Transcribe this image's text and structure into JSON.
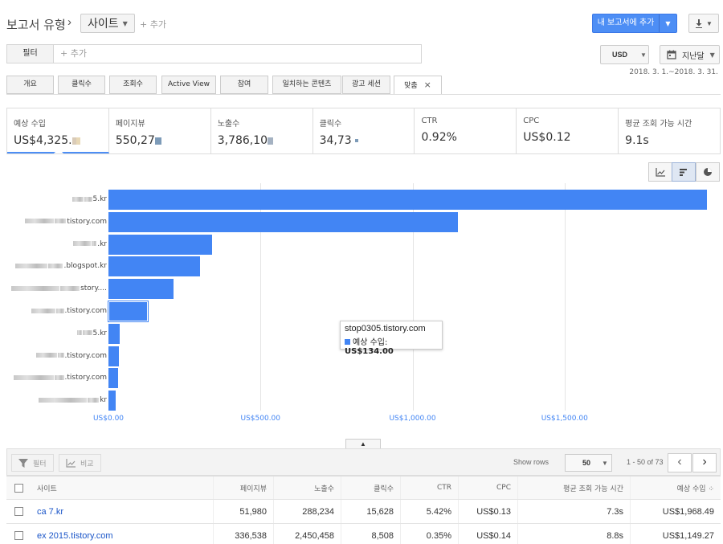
{
  "header": {
    "report_type_label": "보고서 유형",
    "breadcrumb_sep": "›",
    "site_dropdown": "사이트",
    "add_label": "+ 추가",
    "add_to_report_label": "내 보고서에 추가",
    "download_icon": "download-icon"
  },
  "filter": {
    "label": "필터",
    "add_placeholder": "+ 추가"
  },
  "currency": "USD",
  "date": {
    "label": "지난달",
    "range": "2018. 3. 1.~2018. 3. 31."
  },
  "tabs": [
    {
      "label": "개요"
    },
    {
      "label": "클릭수"
    },
    {
      "label": "조회수"
    },
    {
      "label": "Active View"
    },
    {
      "label": "참여"
    },
    {
      "label": "일치하는 콘텐츠"
    },
    {
      "label": "광고 세션"
    },
    {
      "label": "맞춤",
      "close": "×"
    }
  ],
  "metrics": [
    {
      "label": "예상 수입",
      "value": "US$4,325."
    },
    {
      "label": "페이지뷰",
      "value": "550,27"
    },
    {
      "label": "노출수",
      "value": "3,786,10"
    },
    {
      "label": "클릭수",
      "value": "34,73"
    },
    {
      "label": "CTR",
      "value": "0.92%"
    },
    {
      "label": "CPC",
      "value": "US$0.12"
    },
    {
      "label": "평균 조회 가능 시간",
      "value": "9.1s"
    }
  ],
  "chart_data": {
    "type": "bar",
    "orientation": "horizontal",
    "categories": [
      "5.kr",
      "tistory.com",
      ".kr",
      ".blogspot.kr",
      "story....",
      ".tistory.com",
      "5.kr",
      ".tistory.com",
      ".tistory.com",
      "kr"
    ],
    "values": [
      1968.49,
      1149.27,
      340,
      300,
      215,
      130,
      36,
      34,
      33,
      25
    ],
    "xticks": [
      "US$0.00",
      "US$500.00",
      "US$1,000.00",
      "US$1,500.00"
    ],
    "xlim": [
      0,
      2000
    ],
    "series_color": "#4285f4",
    "grid": true,
    "tooltip": {
      "title": "stop0305.tistory.com",
      "metric": "예상 수입:",
      "value": "US$134.00"
    }
  },
  "table_toolbar": {
    "filter_label": "필터",
    "compare_label": "비교",
    "show_rows_label": "Show rows",
    "rows_value": "50",
    "page_info": "1 - 50 of 73"
  },
  "table": {
    "headers": [
      "사이트",
      "페이지뷰",
      "노출수",
      "클릭수",
      "CTR",
      "CPC",
      "평균 조회 가능 시간",
      "예상 수입 ⁘"
    ],
    "rows": [
      {
        "site": "ca    7.kr",
        "pageviews": "51,980",
        "impressions": "288,234",
        "clicks": "15,628",
        "ctr": "5.42%",
        "cpc": "US$0.13",
        "avg_time": "7.3s",
        "earnings": "US$1,968.49"
      },
      {
        "site": "ex    2015.tistory.com",
        "pageviews": "336,538",
        "impressions": "2,450,458",
        "clicks": "8,508",
        "ctr": "0.35%",
        "cpc": "US$0.14",
        "avg_time": "8.8s",
        "earnings": "US$1,149.27"
      }
    ]
  }
}
